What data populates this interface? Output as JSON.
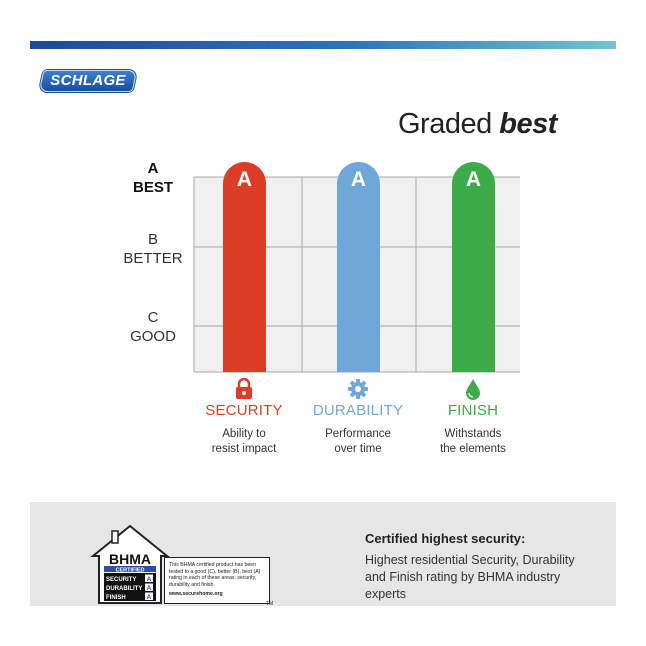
{
  "brand": {
    "logo_text": "SCHLAGE"
  },
  "title": {
    "prefix": "Graded",
    "emphasis": "best"
  },
  "chart_data": {
    "type": "bar",
    "title": "Graded best",
    "y_levels": [
      {
        "grade": "A",
        "label": "BEST"
      },
      {
        "grade": "B",
        "label": "BETTER"
      },
      {
        "grade": "C",
        "label": "GOOD"
      }
    ],
    "categories": [
      "SECURITY",
      "DURABILITY",
      "FINISH"
    ],
    "values": [
      "A",
      "A",
      "A"
    ],
    "descriptions": [
      "Ability to resist impact",
      "Performance over time",
      "Withstands the elements"
    ],
    "description_lines": [
      [
        "Ability to",
        "resist impact"
      ],
      [
        "Performance",
        "over time"
      ],
      [
        "Withstands",
        "the elements"
      ]
    ],
    "icons": [
      "lock-icon",
      "gear-icon",
      "droplet-icon"
    ],
    "colors": [
      "#db3d26",
      "#6fa8d8",
      "#3dab47"
    ],
    "grid": true
  },
  "certification": {
    "heading": "Certified highest security:",
    "text": "Highest residential Security, Durability and Finish rating by BHMA industry experts",
    "badge": {
      "org": "BHMA",
      "certified": "CERTIFIED",
      "rows": [
        {
          "label": "SECURITY",
          "grade": "A"
        },
        {
          "label": "DURABILITY",
          "grade": "A"
        },
        {
          "label": "FINISH",
          "grade": "A"
        }
      ],
      "note": "This BHMA certified product has been tested to a good (C), better (B), best (A) rating in each of these areas: security, durability and finish.",
      "url": "www.securehome.org",
      "tm": "TM"
    }
  }
}
